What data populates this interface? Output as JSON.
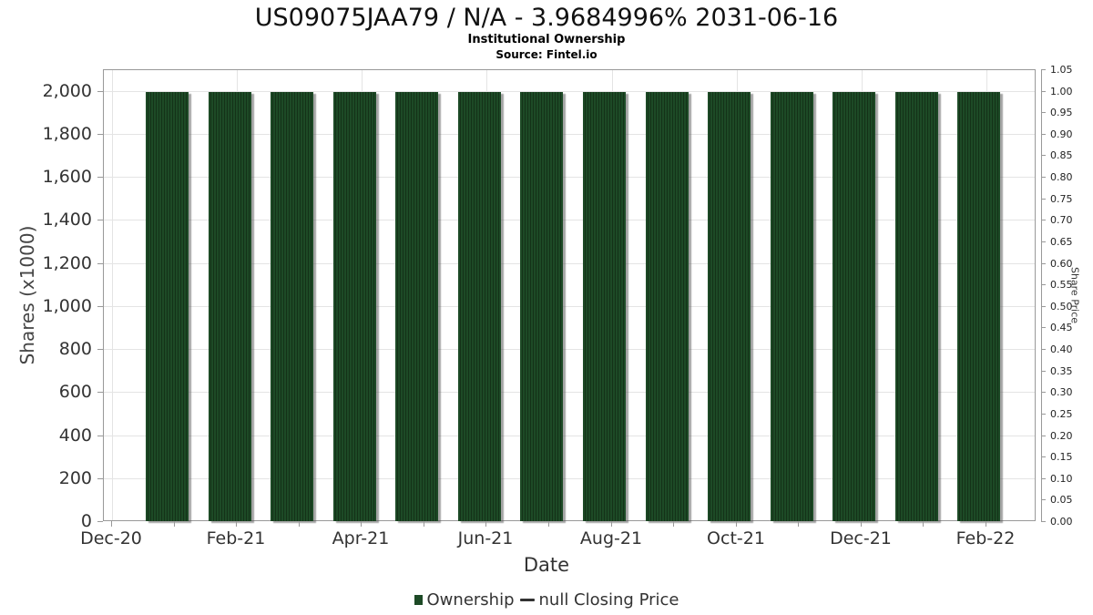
{
  "header": {
    "title": "US09075JAA79 / N/A - 3.9684996% 2031-06-16",
    "subtitle": "Institutional Ownership",
    "source": "Source: Fintel.io"
  },
  "chart_data": {
    "type": "bar",
    "title": "US09075JAA79 / N/A - 3.9684996% 2031-06-16",
    "subtitle": "Institutional Ownership",
    "source_note": "Source: Fintel.io",
    "xlabel": "Date",
    "ylabel_left": "Shares (x1000)",
    "ylabel_right": "Share Price",
    "x_month_ticks": [
      "Dec-20",
      "Jan-21",
      "Feb-21",
      "Mar-21",
      "Apr-21",
      "May-21",
      "Jun-21",
      "Jul-21",
      "Aug-21",
      "Sep-21",
      "Oct-21",
      "Nov-21",
      "Dec-21",
      "Jan-22",
      "Feb-22"
    ],
    "x_labeled_ticks": [
      "Dec-20",
      "Feb-21",
      "Apr-21",
      "Jun-21",
      "Aug-21",
      "Oct-21",
      "Dec-21",
      "Feb-22"
    ],
    "series": [
      {
        "name": "Ownership",
        "type": "column",
        "color": "#1d4a26",
        "categories": [
          "Jan-21",
          "Feb-21",
          "Mar-21",
          "Apr-21",
          "May-21",
          "Jun-21",
          "Jul-21",
          "Aug-21",
          "Sep-21",
          "Oct-21",
          "Nov-21",
          "Dec-21",
          "Jan-22",
          "Feb-22"
        ],
        "values": [
          2000,
          2000,
          2000,
          2000,
          2000,
          2000,
          2000,
          2000,
          2000,
          2000,
          2000,
          2000,
          2000,
          2000
        ]
      },
      {
        "name": "null Closing Price",
        "type": "line",
        "color": "#333333",
        "values": []
      }
    ],
    "ylim_left": [
      0,
      2100
    ],
    "left_tick_values": [
      0,
      200,
      400,
      600,
      800,
      1000,
      1200,
      1400,
      1600,
      1800,
      2000
    ],
    "left_tick_labels": [
      "0",
      "200",
      "400",
      "600",
      "800",
      "1,000",
      "1,200",
      "1,400",
      "1,600",
      "1,800",
      "2,000"
    ],
    "ylim_right": [
      0,
      1.05
    ],
    "right_tick_labels": [
      "0.00",
      "0.05",
      "0.10",
      "0.15",
      "0.20",
      "0.25",
      "0.30",
      "0.35",
      "0.40",
      "0.45",
      "0.50",
      "0.55",
      "0.60",
      "0.65",
      "0.70",
      "0.75",
      "0.80",
      "0.85",
      "0.90",
      "0.95",
      "1.00",
      "1.05"
    ],
    "grid": true,
    "legend_position": "bottom"
  },
  "legend": {
    "items": [
      {
        "label": "Ownership",
        "marker": "square",
        "color": "#1d4a26"
      },
      {
        "label": "null Closing Price",
        "marker": "dash",
        "color": "#333333"
      }
    ]
  }
}
